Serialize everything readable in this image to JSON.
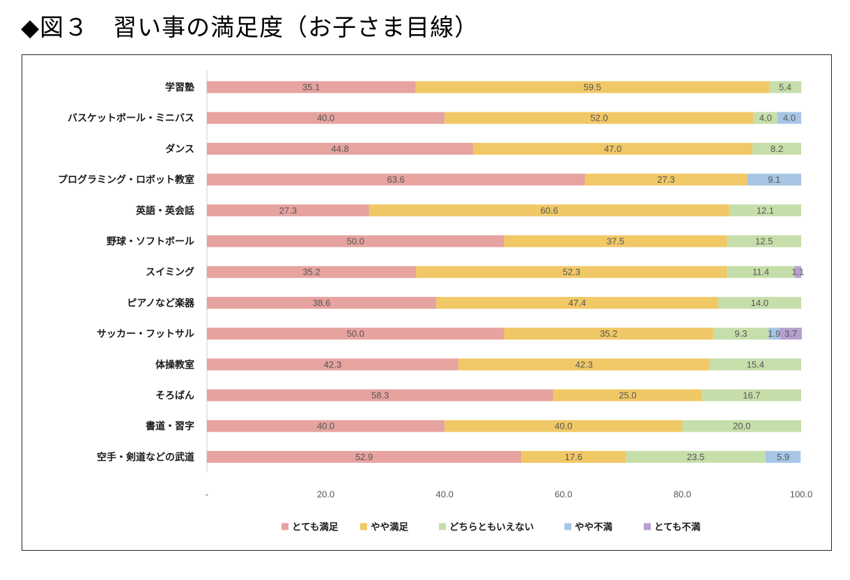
{
  "title": "◆図３　習い事の満足度（お子さま目線）",
  "chart_data": {
    "type": "bar",
    "orientation": "horizontal",
    "stacked": true,
    "xlim": [
      0,
      100
    ],
    "x_ticks": [
      "-",
      "20.0",
      "40.0",
      "60.0",
      "80.0",
      "100.0"
    ],
    "grid": false,
    "legend_position": "bottom",
    "categories": [
      "学習塾",
      "バスケットボール・ミニバス",
      "ダンス",
      "プログラミング・ロボット教室",
      "英語・英会話",
      "野球・ソフトボール",
      "スイミング",
      "ピアノなど楽器",
      "サッカー・フットサル",
      "体操教室",
      "そろばん",
      "書道・習字",
      "空手・剣道などの武道"
    ],
    "series": [
      {
        "name": "とても満足",
        "color": "#e6a3a0",
        "values": [
          35.1,
          40.0,
          44.8,
          63.6,
          27.3,
          50.0,
          35.2,
          38.6,
          50.0,
          42.3,
          58.3,
          40.0,
          52.9
        ]
      },
      {
        "name": "やや満足",
        "color": "#f0c866",
        "values": [
          59.5,
          52.0,
          47.0,
          27.3,
          60.6,
          37.5,
          52.3,
          47.4,
          35.2,
          42.3,
          25.0,
          40.0,
          17.6
        ]
      },
      {
        "name": "どちらともいえない",
        "color": "#c6deaa",
        "values": [
          5.4,
          4.0,
          8.2,
          0,
          12.1,
          12.5,
          11.4,
          14.0,
          9.3,
          15.4,
          16.7,
          20.0,
          23.5
        ]
      },
      {
        "name": "やや不満",
        "color": "#a7c6e6",
        "values": [
          0,
          4.0,
          0,
          9.1,
          0,
          0,
          0,
          0,
          1.9,
          0,
          0,
          0,
          5.9
        ]
      },
      {
        "name": "とても不満",
        "color": "#b7a0cf",
        "values": [
          0,
          0,
          0,
          0,
          0,
          0,
          1.1,
          0,
          3.7,
          0,
          0,
          0,
          0
        ]
      }
    ]
  }
}
